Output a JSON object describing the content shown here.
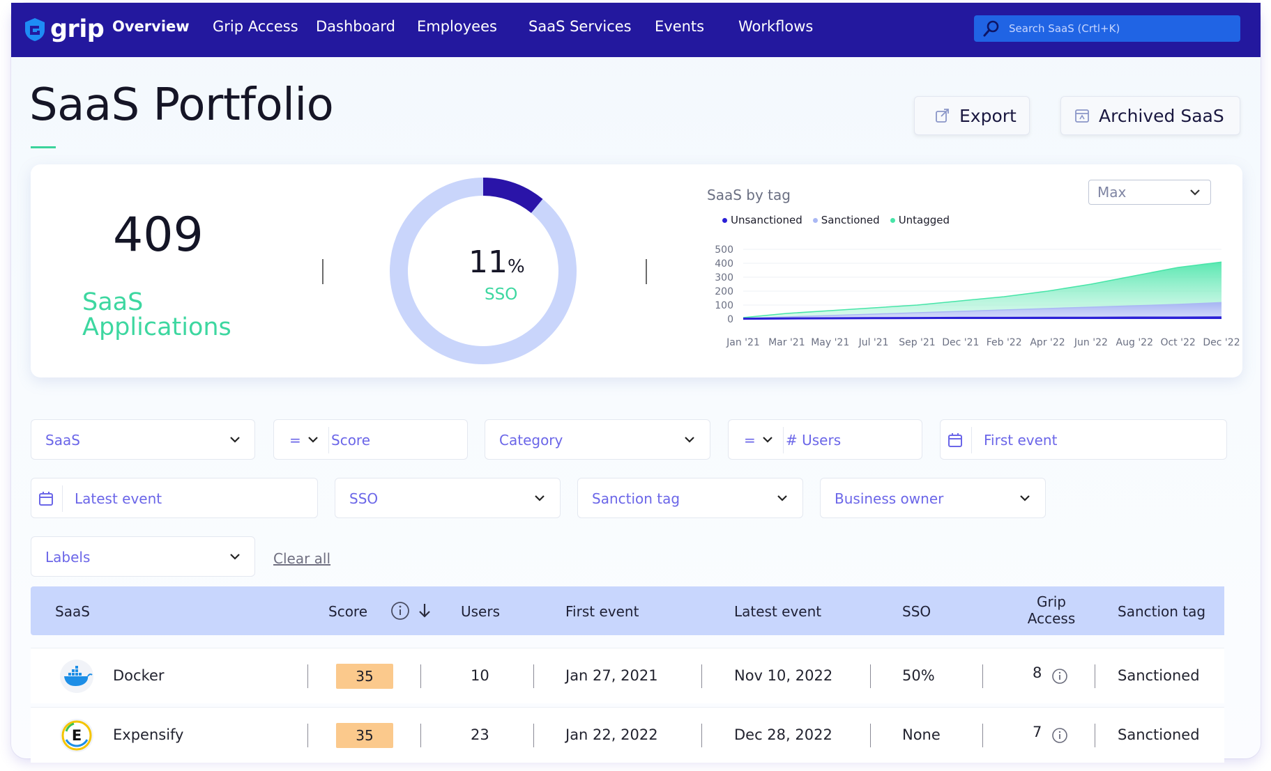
{
  "nav": {
    "brand": "grip",
    "items": [
      "Overview",
      "Grip Access",
      "Dashboard",
      "Employees",
      "SaaS Services",
      "Events",
      "Workflows"
    ],
    "search_placeholder": "Search SaaS (Crtl+K)"
  },
  "header": {
    "title": "SaaS Portfolio",
    "export_label": "Export",
    "archived_label": "Archived SaaS"
  },
  "stats": {
    "count": "409",
    "count_label": "SaaS Applications",
    "sso_value": "11",
    "sso_unit": "%",
    "sso_label": "SSO",
    "sso_fraction": 0.11
  },
  "tag_chart": {
    "title": "SaaS by tag",
    "range": "Max"
  },
  "chart_data": {
    "type": "area",
    "title": "SaaS by tag",
    "x": [
      "Jan '21",
      "Mar '21",
      "May '21",
      "Jul '21",
      "Sep '21",
      "Dec '21",
      "Feb '22",
      "Apr '22",
      "Jun '22",
      "Aug '22",
      "Oct '22",
      "Dec '22"
    ],
    "series": [
      {
        "name": "Unsanctioned",
        "color": "#2b20d6",
        "values": [
          2,
          4,
          5,
          6,
          7,
          8,
          8,
          9,
          9,
          10,
          10,
          11
        ]
      },
      {
        "name": "Sanctioned",
        "color": "#aab8f4",
        "values": [
          5,
          15,
          25,
          35,
          45,
          55,
          65,
          75,
          85,
          95,
          105,
          118
        ]
      },
      {
        "name": "Untagged",
        "color": "#47e5a8",
        "values": [
          10,
          40,
          60,
          80,
          100,
          130,
          160,
          200,
          250,
          310,
          370,
          409
        ]
      }
    ],
    "yticks": [
      0,
      100,
      200,
      300,
      400,
      500
    ],
    "ylim": [
      0,
      500
    ]
  },
  "filters": {
    "saas": "SaaS",
    "score_op": "=",
    "score": "Score",
    "category": "Category",
    "users_op": "=",
    "users": "# Users",
    "first_event": "First event",
    "latest_event": "Latest event",
    "sso": "SSO",
    "sanction_tag": "Sanction tag",
    "business_owner": "Business owner",
    "labels": "Labels",
    "clear_all": "Clear all"
  },
  "table": {
    "columns": {
      "saas": "SaaS",
      "score": "Score",
      "users": "Users",
      "first_event": "First event",
      "latest_event": "Latest event",
      "sso": "SSO",
      "grip_access_1": "Grip",
      "grip_access_2": "Access",
      "sanction_tag": "Sanction tag"
    },
    "rows": [
      {
        "name": "Docker",
        "score": "35",
        "users": "10",
        "first_event": "Jan 27, 2021",
        "latest_event": "Nov 10, 2022",
        "sso": "50%",
        "grip_access": "8",
        "sanction": "Sanctioned"
      },
      {
        "name": "Expensify",
        "score": "35",
        "users": "23",
        "first_event": "Jan 22, 2022",
        "latest_event": "Dec 28, 2022",
        "sso": "None",
        "grip_access": "7",
        "sanction": "Sanctioned",
        "logo_letter": "E"
      }
    ]
  }
}
